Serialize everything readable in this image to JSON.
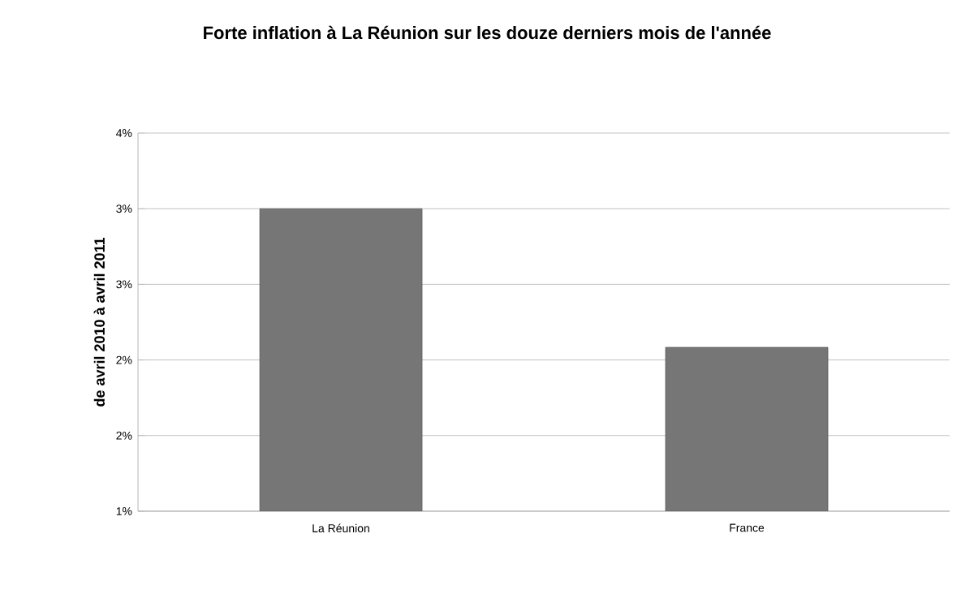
{
  "chart_data": {
    "type": "bar",
    "title": "Forte inflation à La Réunion sur les douze derniers mois de l'année",
    "ylabel": "de avril 2010 à avril 2011",
    "categories": [
      "La Réunion",
      "France"
    ],
    "values": [
      3.4,
      2.3
    ],
    "color": "#767676",
    "ylim": [
      1.0,
      4.0
    ],
    "yticks": [
      {
        "value": 1.0,
        "label": "1%"
      },
      {
        "value": 1.6,
        "label": "2%"
      },
      {
        "value": 2.2,
        "label": "2%"
      },
      {
        "value": 2.8,
        "label": "3%"
      },
      {
        "value": 3.4,
        "label": "3%"
      },
      {
        "value": 4.0,
        "label": "4%"
      }
    ],
    "grid": "y"
  }
}
